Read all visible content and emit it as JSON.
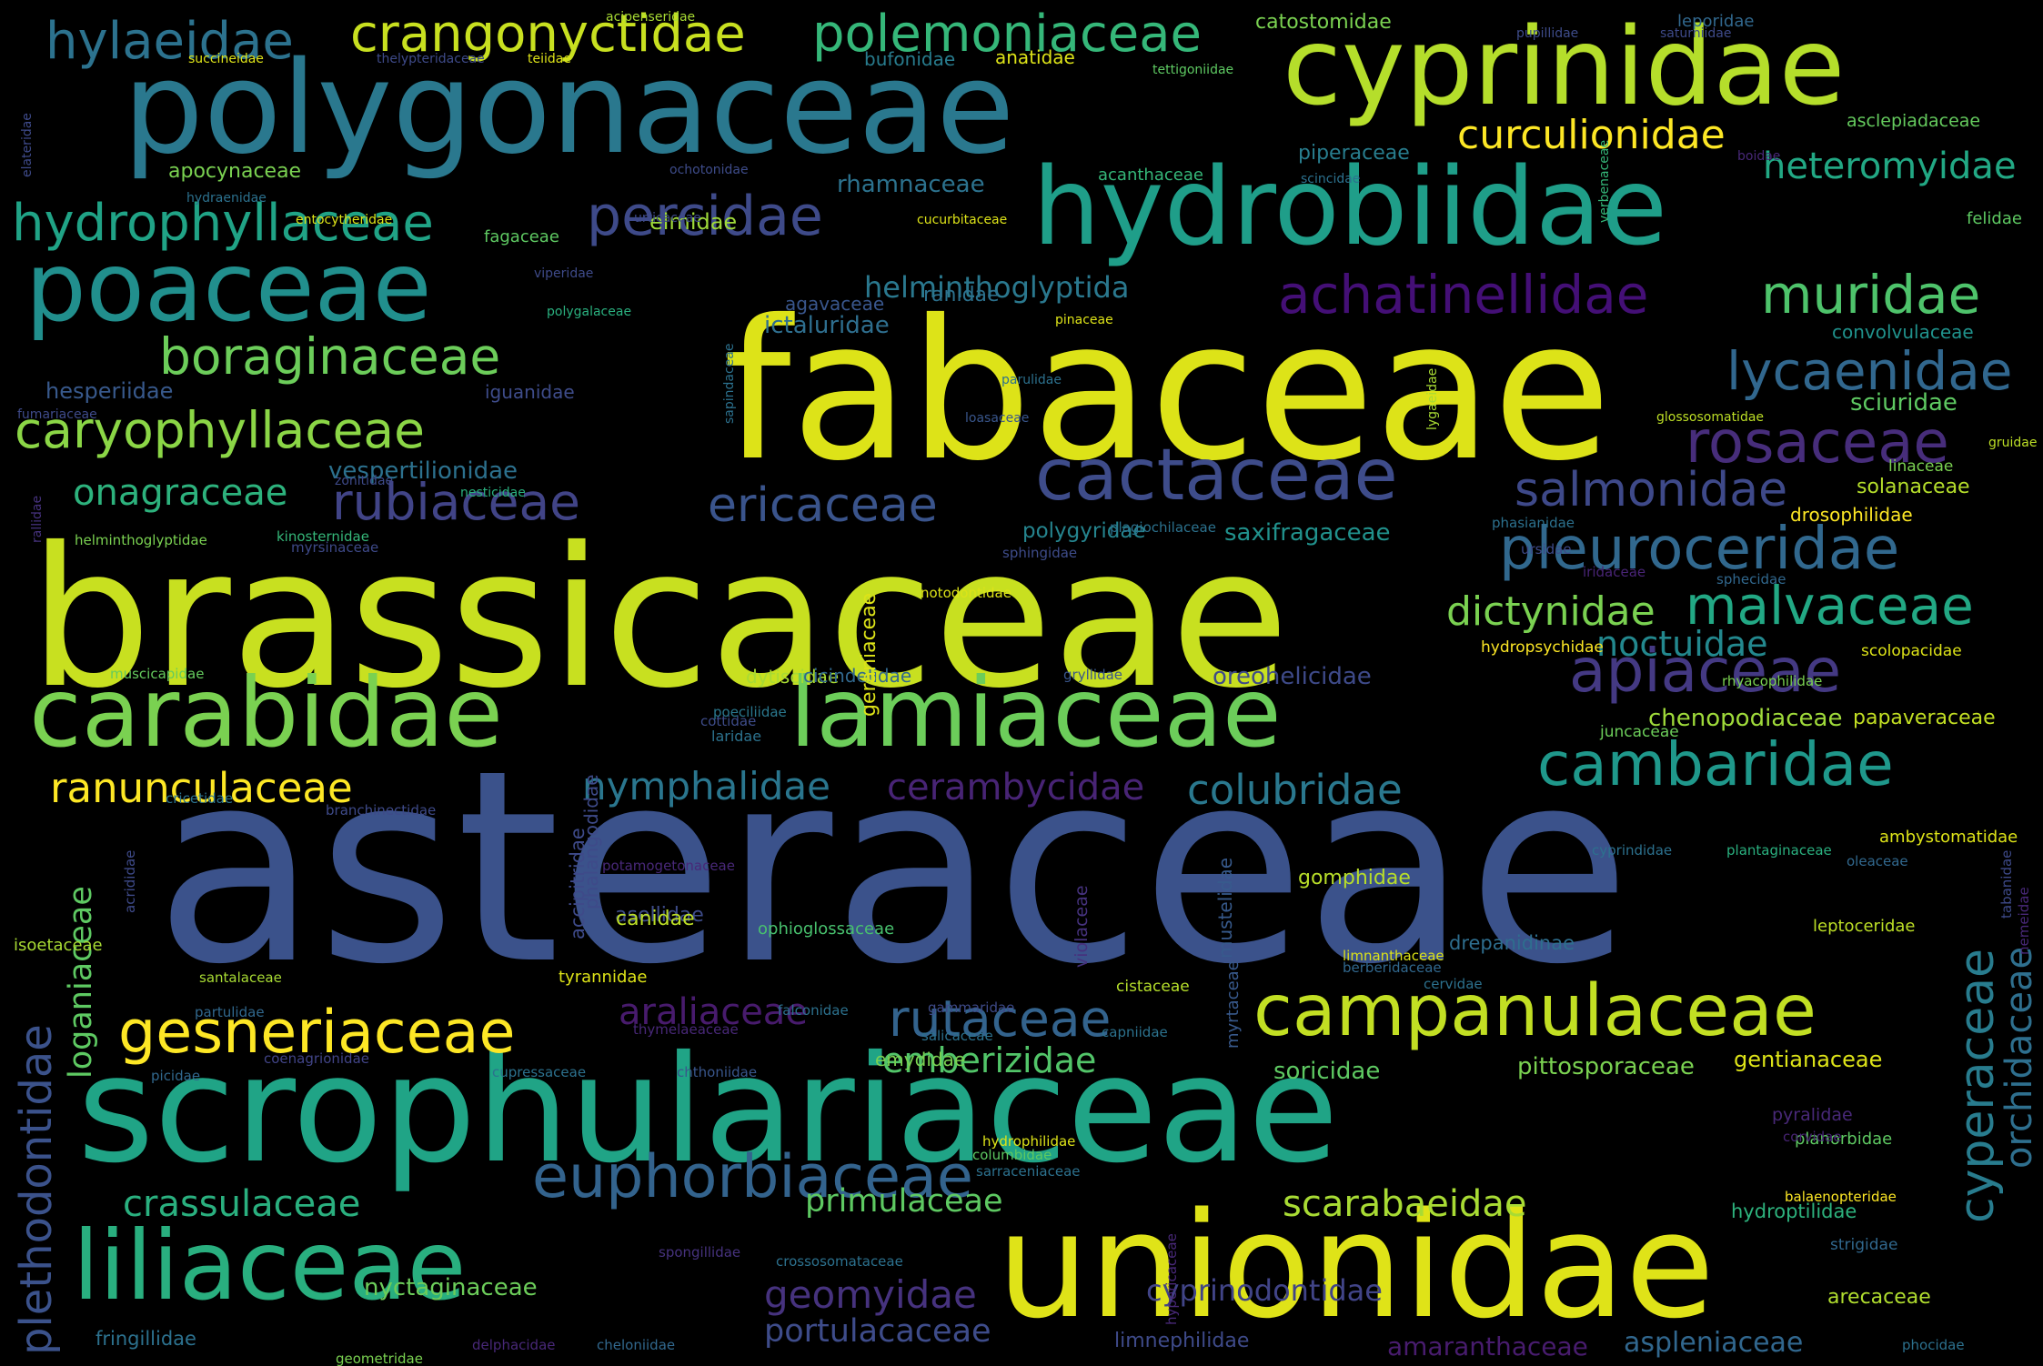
{
  "words": [
    {
      "text": "asteraceae",
      "color": "#3b528b"
    },
    {
      "text": "fabaceae",
      "color": "#dde318"
    },
    {
      "text": "brassicaceae",
      "color": "#c8e020"
    },
    {
      "text": "scrophulariaceae",
      "color": "#20a486"
    },
    {
      "text": "unionidae",
      "color": "#dfe318"
    },
    {
      "text": "polygonaceae",
      "color": "#2a788e"
    },
    {
      "text": "cyprinidae",
      "color": "#b5de2b"
    },
    {
      "text": "hydrobiidae",
      "color": "#1f9e89"
    },
    {
      "text": "carabidae",
      "color": "#7ad151"
    },
    {
      "text": "lamiaceae",
      "color": "#6ccd5a"
    },
    {
      "text": "liliaceae",
      "color": "#29af7f"
    },
    {
      "text": "poaceae",
      "color": "#218f8d"
    },
    {
      "text": "campanulaceae",
      "color": "#c2df23"
    },
    {
      "text": "cactaceae",
      "color": "#3e4c8a"
    },
    {
      "text": "apiaceae",
      "color": "#443983"
    },
    {
      "text": "cambaridae",
      "color": "#1f988b"
    },
    {
      "text": "crangonyctidae",
      "color": "#c8e020"
    },
    {
      "text": "polemoniaceae",
      "color": "#35b779"
    },
    {
      "text": "hylaeidae",
      "color": "#2c728e"
    },
    {
      "text": "curculionidae",
      "color": "#fde725"
    },
    {
      "text": "heteromyidae",
      "color": "#22a884"
    },
    {
      "text": "percidae",
      "color": "#3e4a89"
    },
    {
      "text": "hydrophyllaceae",
      "color": "#20a386"
    },
    {
      "text": "achatinellidae",
      "color": "#440f76"
    },
    {
      "text": "muridae",
      "color": "#4ec36b"
    },
    {
      "text": "boraginaceae",
      "color": "#6ccd5a"
    },
    {
      "text": "caryophyllaceae",
      "color": "#8bd646"
    },
    {
      "text": "lycaenidae",
      "color": "#31678e"
    },
    {
      "text": "rosaceae",
      "color": "#472d7b"
    },
    {
      "text": "salmonidae",
      "color": "#3e4989"
    },
    {
      "text": "pleuroceridae",
      "color": "#31688e"
    },
    {
      "text": "malvaceae",
      "color": "#22a884"
    },
    {
      "text": "onagraceae",
      "color": "#2db27d"
    },
    {
      "text": "rubiaceae",
      "color": "#414487"
    },
    {
      "text": "ericaceae",
      "color": "#3a548c"
    },
    {
      "text": "ranunculaceae",
      "color": "#fde725"
    },
    {
      "text": "nymphalidae",
      "color": "#2a768e"
    },
    {
      "text": "cerambycidae",
      "color": "#482475"
    },
    {
      "text": "colubridae",
      "color": "#2a788e"
    },
    {
      "text": "dictynidae",
      "color": "#7ad151"
    },
    {
      "text": "noctuidae",
      "color": "#23888e"
    },
    {
      "text": "gesneriaceae",
      "color": "#fde725"
    },
    {
      "text": "araliaceae",
      "color": "#481b6d"
    },
    {
      "text": "rutaceae",
      "color": "#33638d"
    },
    {
      "text": "emberizidae",
      "color": "#52c569"
    },
    {
      "text": "euphorbiaceae",
      "color": "#33638d"
    },
    {
      "text": "crassulaceae",
      "color": "#2ab07f"
    },
    {
      "text": "scarabaeidae",
      "color": "#a8db34"
    },
    {
      "text": "primulaceae",
      "color": "#5ec962"
    },
    {
      "text": "geomyidae",
      "color": "#46327e"
    },
    {
      "text": "portulacaceae",
      "color": "#3e4c8a"
    },
    {
      "text": "cyprinodontidae",
      "color": "#414487"
    },
    {
      "text": "plethodontidae",
      "color": "#3b528b"
    },
    {
      "text": "loganiaceae",
      "color": "#5ec962"
    },
    {
      "text": "cyperaceae",
      "color": "#287c8e"
    },
    {
      "text": "orchidaceae",
      "color": "#2e6f8e"
    },
    {
      "text": "amaranthaceae",
      "color": "#481c6e"
    },
    {
      "text": "aspleniaceae",
      "color": "#31678e"
    },
    {
      "text": "nyctaginaceae",
      "color": "#6ccd5a"
    },
    {
      "text": "arecaceae",
      "color": "#b0dd2f"
    },
    {
      "text": "soricidae",
      "color": "#5ec962"
    },
    {
      "text": "pittosporaceae",
      "color": "#7ad151"
    },
    {
      "text": "gentianaceae",
      "color": "#dde318"
    },
    {
      "text": "limnephilidae",
      "color": "#3e4a89"
    },
    {
      "text": "fringillidae",
      "color": "#2c718e"
    },
    {
      "text": "hydroptilidae",
      "color": "#2db27d"
    },
    {
      "text": "oreohelicidae",
      "color": "#3e4a89"
    },
    {
      "text": "chenopodiaceae",
      "color": "#9fda3a"
    },
    {
      "text": "papaveraceae",
      "color": "#c2df23"
    },
    {
      "text": "saxifragaceae",
      "color": "#21918c"
    },
    {
      "text": "polygyridae",
      "color": "#25848e"
    },
    {
      "text": "solanaceae",
      "color": "#b5de2b"
    },
    {
      "text": "drosophilidae",
      "color": "#fde725"
    },
    {
      "text": "sciuridae",
      "color": "#5ec962"
    },
    {
      "text": "convolvulaceae",
      "color": "#20928c"
    },
    {
      "text": "vespertilionidae",
      "color": "#2c718e"
    },
    {
      "text": "helminthoglyptida",
      "color": "#2a788e"
    },
    {
      "text": "rhamnaceae",
      "color": "#2c728e"
    },
    {
      "text": "elmidae",
      "color": "#9fda3a"
    },
    {
      "text": "apocynaceae",
      "color": "#7ad151"
    },
    {
      "text": "hesperiidae",
      "color": "#38598c"
    },
    {
      "text": "iguanidae",
      "color": "#3e4c8a"
    },
    {
      "text": "ictaluridae",
      "color": "#2e6e8e"
    },
    {
      "text": "ranidae",
      "color": "#2c718e"
    },
    {
      "text": "agavaceae",
      "color": "#39568c"
    },
    {
      "text": "catostomidae",
      "color": "#7ad151"
    },
    {
      "text": "piperaceae",
      "color": "#287d8e"
    },
    {
      "text": "anatidae",
      "color": "#dde318"
    },
    {
      "text": "bufonidae",
      "color": "#287c8e"
    },
    {
      "text": "leporidae",
      "color": "#31688e"
    },
    {
      "text": "asclepiadaceae",
      "color": "#65cb5e"
    },
    {
      "text": "fagaceae",
      "color": "#5ec962"
    },
    {
      "text": "acanthaceae",
      "color": "#35b779"
    },
    {
      "text": "felidae",
      "color": "#5ec962"
    },
    {
      "text": "dytiscidae",
      "color": "#a8db34"
    },
    {
      "text": "cicindelidae",
      "color": "#31688e"
    },
    {
      "text": "asellidae",
      "color": "#3e4c8a"
    },
    {
      "text": "canidae",
      "color": "#bddf26"
    },
    {
      "text": "gomphidae",
      "color": "#b8de29"
    },
    {
      "text": "drepanidinae",
      "color": "#2e6e8e"
    },
    {
      "text": "emydidae",
      "color": "#7ad151"
    },
    {
      "text": "mustelidae",
      "color": "#375a8c"
    },
    {
      "text": "accipitridae",
      "color": "#3e4a89"
    },
    {
      "text": "phalangodidae",
      "color": "#3e4a89"
    },
    {
      "text": "isoetaceae",
      "color": "#a8db34"
    },
    {
      "text": "ophioglossaceae",
      "color": "#48c16e"
    },
    {
      "text": "violaceae",
      "color": "#46327e"
    },
    {
      "text": "myrtaceae",
      "color": "#38598c"
    },
    {
      "text": "tyrannidae",
      "color": "#dde318"
    },
    {
      "text": "ambystomatidae",
      "color": "#dde318"
    },
    {
      "text": "leptoceridae",
      "color": "#bddf26"
    },
    {
      "text": "linaceae",
      "color": "#7ad151"
    },
    {
      "text": "cistaceae",
      "color": "#b5de2b"
    },
    {
      "text": "santalaceae",
      "color": "#a8db34"
    },
    {
      "text": "pyralidae",
      "color": "#482878"
    },
    {
      "text": "planorbidae",
      "color": "#5ec962"
    },
    {
      "text": "strigidae",
      "color": "#31688e"
    },
    {
      "text": "laridae",
      "color": "#2c728e"
    },
    {
      "text": "juncaceae",
      "color": "#6ccd5a"
    },
    {
      "text": "scolopacidae",
      "color": "#dde318"
    },
    {
      "text": "hydropsychidae",
      "color": "#fde725"
    },
    {
      "text": "rhyacophilidae",
      "color": "#7ad151"
    },
    {
      "text": "muscicapidae",
      "color": "#65cb5e"
    },
    {
      "text": "cottidae",
      "color": "#3e4c8a"
    },
    {
      "text": "gryllidae",
      "color": "#39568c"
    },
    {
      "text": "geraniaceae",
      "color": "#dde318"
    },
    {
      "text": "plantaginaceae",
      "color": "#2ab07f"
    },
    {
      "text": "cyprindidae",
      "color": "#2c718e"
    },
    {
      "text": "oleaceae",
      "color": "#31688e"
    },
    {
      "text": "helminthoglyptidae",
      "color": "#7ad151"
    },
    {
      "text": "kinosternidae",
      "color": "#35b779"
    },
    {
      "text": "myrsinaceae",
      "color": "#3e4a89"
    },
    {
      "text": "sphingidae",
      "color": "#3e4c8a"
    },
    {
      "text": "plagiochilaceae",
      "color": "#2c728e"
    },
    {
      "text": "phasianidae",
      "color": "#2c718e"
    },
    {
      "text": "ursidae",
      "color": "#3e4a89"
    },
    {
      "text": "sphecidae",
      "color": "#31688e"
    },
    {
      "text": "iridaceae",
      "color": "#482475"
    },
    {
      "text": "notodontidae",
      "color": "#dde318"
    },
    {
      "text": "poeciliidae",
      "color": "#2a788e"
    },
    {
      "text": "cricetidae",
      "color": "#2c728e"
    },
    {
      "text": "branchinectidae",
      "color": "#3e4a89"
    },
    {
      "text": "acrididae",
      "color": "#3e4a89"
    },
    {
      "text": "partulidae",
      "color": "#31688e"
    },
    {
      "text": "picidae",
      "color": "#31688e"
    },
    {
      "text": "coenagrionidae",
      "color": "#414487"
    },
    {
      "text": "cupressaceae",
      "color": "#2c718e"
    },
    {
      "text": "chthoniidae",
      "color": "#39568c"
    },
    {
      "text": "thymelaeaceae",
      "color": "#482878"
    },
    {
      "text": "salicaceae",
      "color": "#2c718e"
    },
    {
      "text": "capniidae",
      "color": "#2c728e"
    },
    {
      "text": "hydrophilidae",
      "color": "#dde318"
    },
    {
      "text": "columbidae",
      "color": "#5ec962"
    },
    {
      "text": "sarraceniaceae",
      "color": "#2c718e"
    },
    {
      "text": "corvidae",
      "color": "#482475"
    },
    {
      "text": "balaenopteridae",
      "color": "#fde725"
    },
    {
      "text": "spongillidae",
      "color": "#46327e"
    },
    {
      "text": "crossosomataceae",
      "color": "#2c718e"
    },
    {
      "text": "hypericaceae",
      "color": "#482878"
    },
    {
      "text": "delphacidae",
      "color": "#482878"
    },
    {
      "text": "cheloniidae",
      "color": "#31688e"
    },
    {
      "text": "geometridae",
      "color": "#7ad151"
    },
    {
      "text": "phocidae",
      "color": "#2c718e"
    },
    {
      "text": "gammaridae",
      "color": "#3e4a89"
    },
    {
      "text": "falconidae",
      "color": "#2c718e"
    },
    {
      "text": "limnanthaceae",
      "color": "#dde318"
    },
    {
      "text": "berberidaceae",
      "color": "#31688e"
    },
    {
      "text": "cervidae",
      "color": "#2c718e"
    },
    {
      "text": "potamogetonaceae",
      "color": "#482878"
    },
    {
      "text": "nemeidae",
      "color": "#482878"
    },
    {
      "text": "tabanidae",
      "color": "#3e4a89"
    },
    {
      "text": "acipenseridae",
      "color": "#a8db34"
    },
    {
      "text": "saturniidae",
      "color": "#3e4a89"
    },
    {
      "text": "pupillidae",
      "color": "#3e4c8a"
    },
    {
      "text": "succineidae",
      "color": "#dde318"
    },
    {
      "text": "thelypteridaceae",
      "color": "#3e4a89"
    },
    {
      "text": "teiidae",
      "color": "#dde318"
    },
    {
      "text": "tettigoniidae",
      "color": "#5ec962"
    },
    {
      "text": "ochotonidae",
      "color": "#3e4c8a"
    },
    {
      "text": "scincidae",
      "color": "#2c718e"
    },
    {
      "text": "boidae",
      "color": "#482878"
    },
    {
      "text": "hydraenidae",
      "color": "#2c718e"
    },
    {
      "text": "cucurbitaceae",
      "color": "#dde318"
    },
    {
      "text": "entocytheridae",
      "color": "#dde318"
    },
    {
      "text": "urticaceae",
      "color": "#3e4a89"
    },
    {
      "text": "viperidae",
      "color": "#3e4a89"
    },
    {
      "text": "polygalaceae",
      "color": "#2ab07f"
    },
    {
      "text": "pinaceae",
      "color": "#dde318"
    },
    {
      "text": "verbenaceae",
      "color": "#35b779"
    },
    {
      "text": "elateridae",
      "color": "#3e4a89"
    },
    {
      "text": "fumariaceae",
      "color": "#3e4a89"
    },
    {
      "text": "zonitidae",
      "color": "#3e4a89"
    },
    {
      "text": "nesticidae",
      "color": "#2ab07f"
    },
    {
      "text": "rallidae",
      "color": "#46327e"
    },
    {
      "text": "sapindaceae",
      "color": "#2c718e"
    },
    {
      "text": "parulidae",
      "color": "#2c718e"
    },
    {
      "text": "loasaceae",
      "color": "#39568c"
    },
    {
      "text": "lygaeidae",
      "color": "#a8db34"
    },
    {
      "text": "glossosomatidae",
      "color": "#bddf26"
    },
    {
      "text": "gruidae",
      "color": "#bddf26"
    }
  ]
}
